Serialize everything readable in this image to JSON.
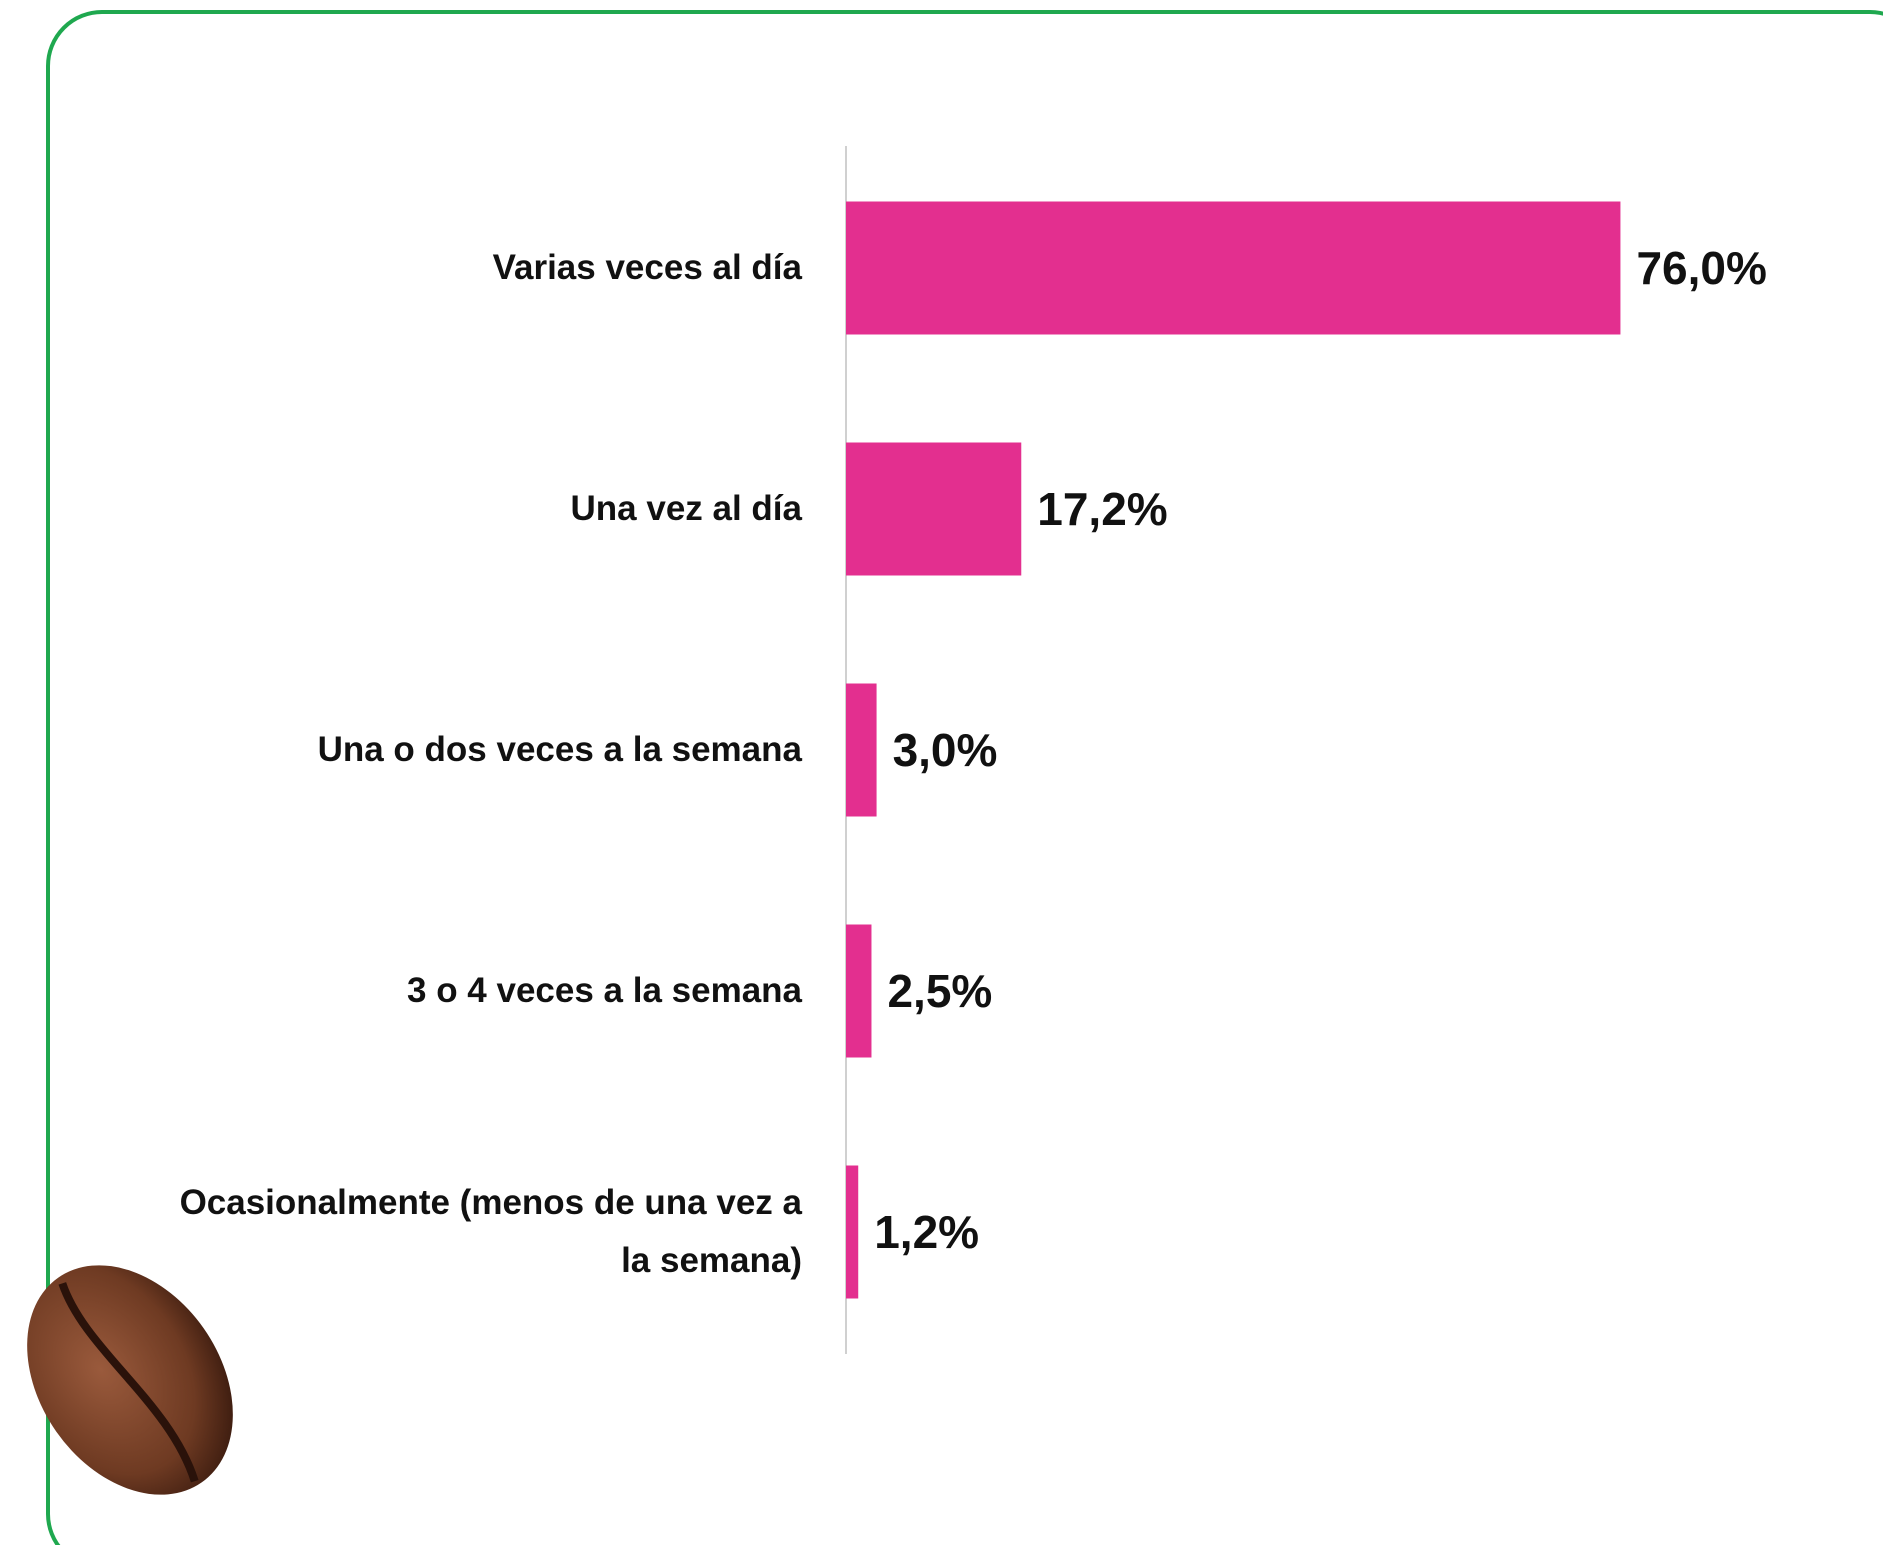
{
  "chart_data": {
    "type": "bar",
    "orientation": "horizontal",
    "categories": [
      "Varias veces al día",
      "Una vez al día",
      "Una o dos veces a la semana",
      "3 o 4 veces a la semana",
      "Ocasionalmente (menos de una vez a la semana)"
    ],
    "values": [
      76.0,
      17.2,
      3.0,
      2.5,
      1.2
    ],
    "value_labels": [
      "76,0%",
      "17,2%",
      "3,0%",
      "2,5%",
      "1,2%"
    ],
    "color": "#e32f8f",
    "xlim": [
      0,
      100
    ]
  }
}
